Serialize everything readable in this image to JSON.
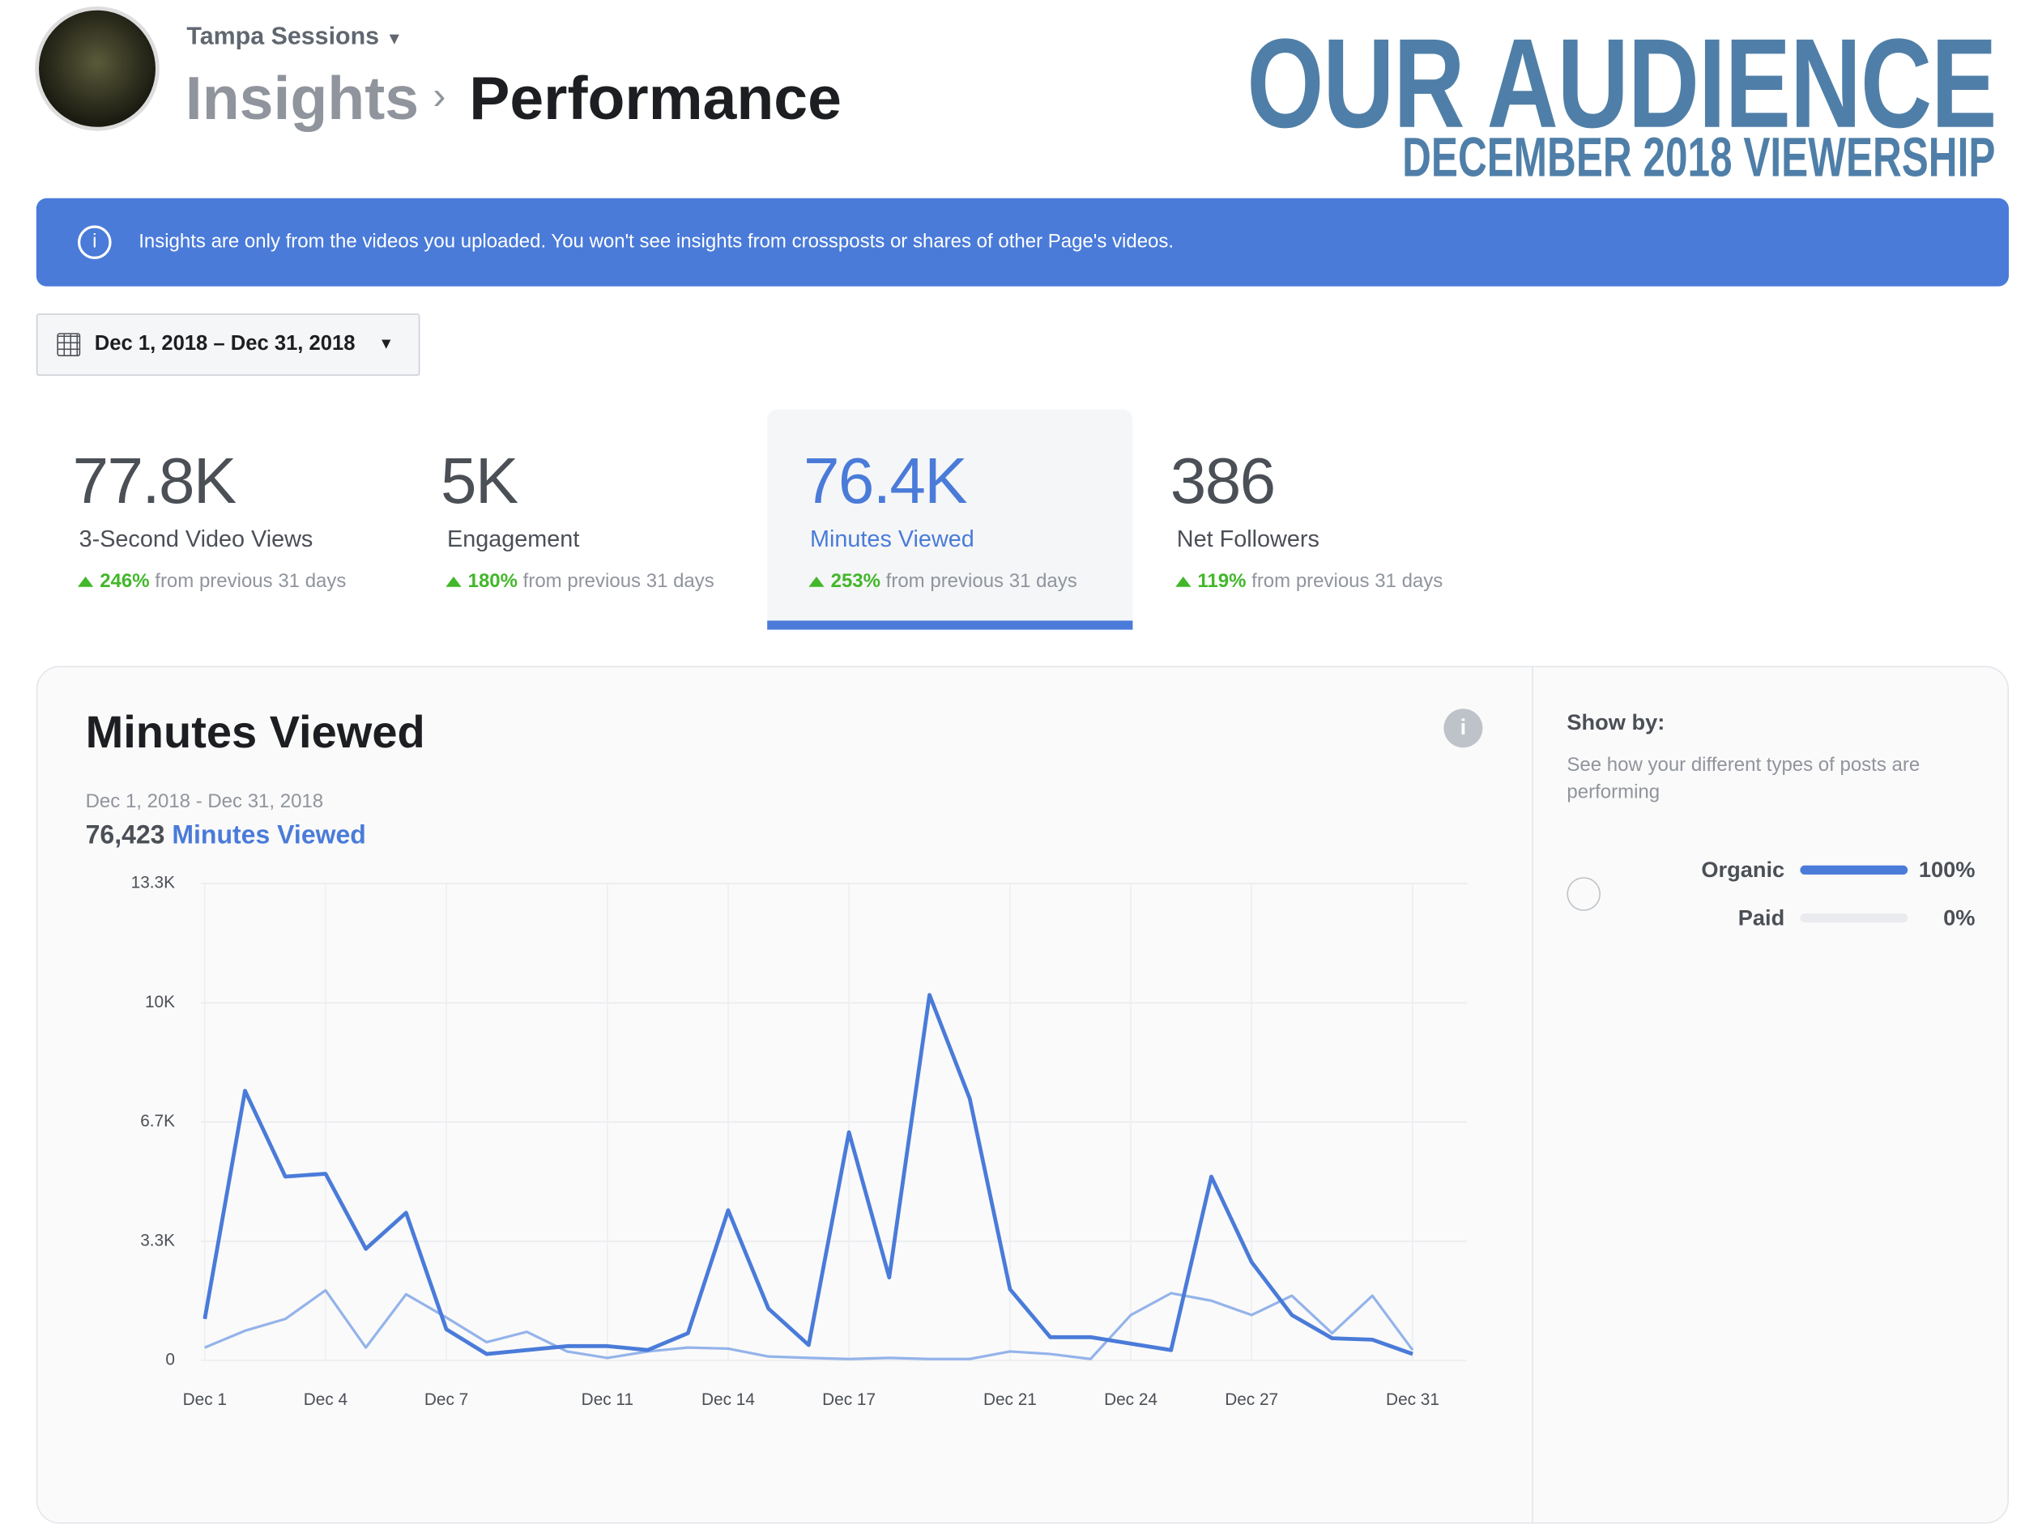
{
  "header": {
    "page_name": "Tampa Sessions",
    "breadcrumb": [
      "Insights",
      "Performance"
    ],
    "title": "OUR AUDIENCE",
    "subtitle": "DECEMBER 2018 VIEWERSHIP"
  },
  "banner": "Insights are only from the videos you uploaded. You won't see insights from crossposts or shares of other Page's videos.",
  "date_range": "Dec 1, 2018 – Dec 31, 2018",
  "metrics": [
    {
      "value": "77.8K",
      "label": "3-Second Video Views",
      "change": "246%",
      "note": "from previous 31 days"
    },
    {
      "value": "5K",
      "label": "Engagement",
      "change": "180%",
      "note": "from previous 31 days"
    },
    {
      "value": "76.4K",
      "label": "Minutes Viewed",
      "change": "253%",
      "note": "from previous 31 days"
    },
    {
      "value": "386",
      "label": "Net Followers",
      "change": "119%",
      "note": "from previous 31 days"
    }
  ],
  "chart_panel": {
    "title": "Minutes Viewed",
    "range": "Dec 1, 2018 - Dec 31, 2018",
    "total": "76,423",
    "total_label": "Minutes Viewed"
  },
  "chart_data": {
    "type": "line",
    "categories": [
      "Dec 1",
      null,
      null,
      "Dec 4",
      null,
      null,
      "Dec 7",
      null,
      null,
      null,
      "Dec 11",
      null,
      null,
      "Dec 14",
      null,
      null,
      "Dec 17",
      null,
      null,
      null,
      "Dec 21",
      null,
      null,
      "Dec 24",
      null,
      null,
      "Dec 27",
      null,
      null,
      null,
      "Dec 31"
    ],
    "series": [
      {
        "color": "#94b3ea",
        "values": [
          360,
          830,
          1160,
          1960,
          360,
          1850,
          1200,
          510,
          800,
          250,
          70,
          250,
          360,
          330,
          110,
          70,
          40,
          70,
          40,
          40,
          250,
          180,
          40,
          1270,
          1880,
          1670,
          1270,
          1810,
          760,
          1810,
          290
        ]
      },
      {
        "color": "#4a7bd9",
        "values": [
          1160,
          7540,
          5140,
          5220,
          3120,
          4130,
          870,
          180,
          290,
          400,
          400,
          290,
          760,
          4200,
          1450,
          430,
          6380,
          2320,
          10220,
          7320,
          1990,
          650,
          650,
          470,
          290,
          5140,
          2750,
          1270,
          620,
          580,
          180
        ]
      }
    ],
    "ylim": [
      0,
      13333
    ],
    "yticks": [
      0,
      {
        "value": 3333,
        "label": "3.3K"
      },
      {
        "value": 6667,
        "label": "6.7K"
      },
      {
        "value": 10000,
        "label": "10K"
      },
      {
        "value": 13333,
        "label": "13.3K"
      }
    ],
    "grid": true
  },
  "show_by": {
    "title": "Show by:",
    "description": "See how your different types of posts are performing",
    "options": [
      {
        "label": "Organic",
        "value": 100,
        "value_label": "100%",
        "color": "#4a7bd9"
      },
      {
        "label": "Paid",
        "value": 0,
        "value_label": "0%",
        "color": "#4a7bd9"
      }
    ]
  }
}
